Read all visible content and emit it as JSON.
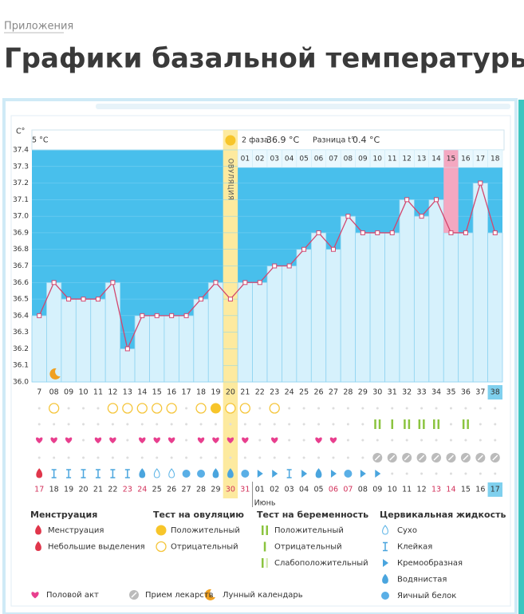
{
  "header": {
    "breadcrumb": "Приложения",
    "title": "Графики базальной температуры"
  },
  "chart_data": {
    "type": "line",
    "y_label": "C°",
    "phase_info": {
      "phase1_temp": "5 °C",
      "phase2_label": "2 фаза",
      "phase2_temp": "36.9 °C",
      "diff_label": "Разница t°",
      "diff": "0.4 °C"
    },
    "ovulation_label": "ОВУЛЯЦИЯ",
    "categories": [
      "7",
      "08",
      "09",
      "10",
      "11",
      "12",
      "13",
      "14",
      "15",
      "16",
      "17",
      "18",
      "19",
      "20",
      "21",
      "22",
      "23",
      "24",
      "25",
      "26",
      "27",
      "28",
      "29",
      "30",
      "31",
      "32",
      "33",
      "34",
      "35",
      "36",
      "37",
      "38"
    ],
    "values": [
      36.4,
      36.6,
      36.5,
      36.5,
      36.5,
      36.6,
      36.2,
      36.4,
      36.4,
      36.4,
      36.4,
      36.5,
      36.6,
      36.5,
      36.6,
      36.6,
      36.7,
      36.7,
      36.8,
      36.9,
      36.8,
      37.0,
      36.9,
      36.9,
      36.9,
      37.1,
      37.0,
      37.1,
      36.9,
      36.9,
      37.2,
      36.9
    ],
    "color": "#d2476f",
    "dates": [
      "17",
      "18",
      "19",
      "20",
      "21",
      "22",
      "23",
      "24",
      "25",
      "26",
      "27",
      "28",
      "29",
      "30",
      "31",
      "01",
      "02",
      "03",
      "04",
      "05",
      "06",
      "07",
      "08",
      "09",
      "10",
      "11",
      "12",
      "13",
      "14",
      "15",
      "16",
      "17"
    ],
    "month": "Июнь",
    "phase_days": [
      "01",
      "02",
      "03",
      "04",
      "05",
      "06",
      "07",
      "08",
      "09",
      "10",
      "11",
      "12",
      "13",
      "14",
      "15",
      "16",
      "17",
      "18"
    ],
    "ylim": [
      36.0,
      37.4
    ],
    "yticks": [
      {
        "value": 36,
        "label": "36.0"
      },
      36.1,
      36.2,
      36.3,
      36.4,
      36.5,
      36.6,
      36.7,
      36.8,
      36.9,
      {
        "value": 37,
        "label": "37.0"
      },
      37.1,
      37.2,
      37.3,
      37.4
    ],
    "grid": true
  },
  "legend": {
    "groups": [
      {
        "title": "Менструация",
        "items": [
          "Менструация",
          "Небольшие выделения"
        ]
      },
      {
        "title": "Тест на овуляцию",
        "items": [
          "Положительный",
          "Отрицательный"
        ]
      },
      {
        "title": "Тест на беременность",
        "items": [
          "Положительный",
          "Отрицательный",
          "Слабоположительный"
        ]
      },
      {
        "title": "Цервикальная жидкость",
        "items": [
          "Сухо",
          "Клейкая",
          "Кремообразная",
          "Водянистая",
          "Яичный белок"
        ]
      }
    ],
    "other": [
      "Половой акт",
      "Прием лекарств",
      "Лунный календарь"
    ]
  }
}
